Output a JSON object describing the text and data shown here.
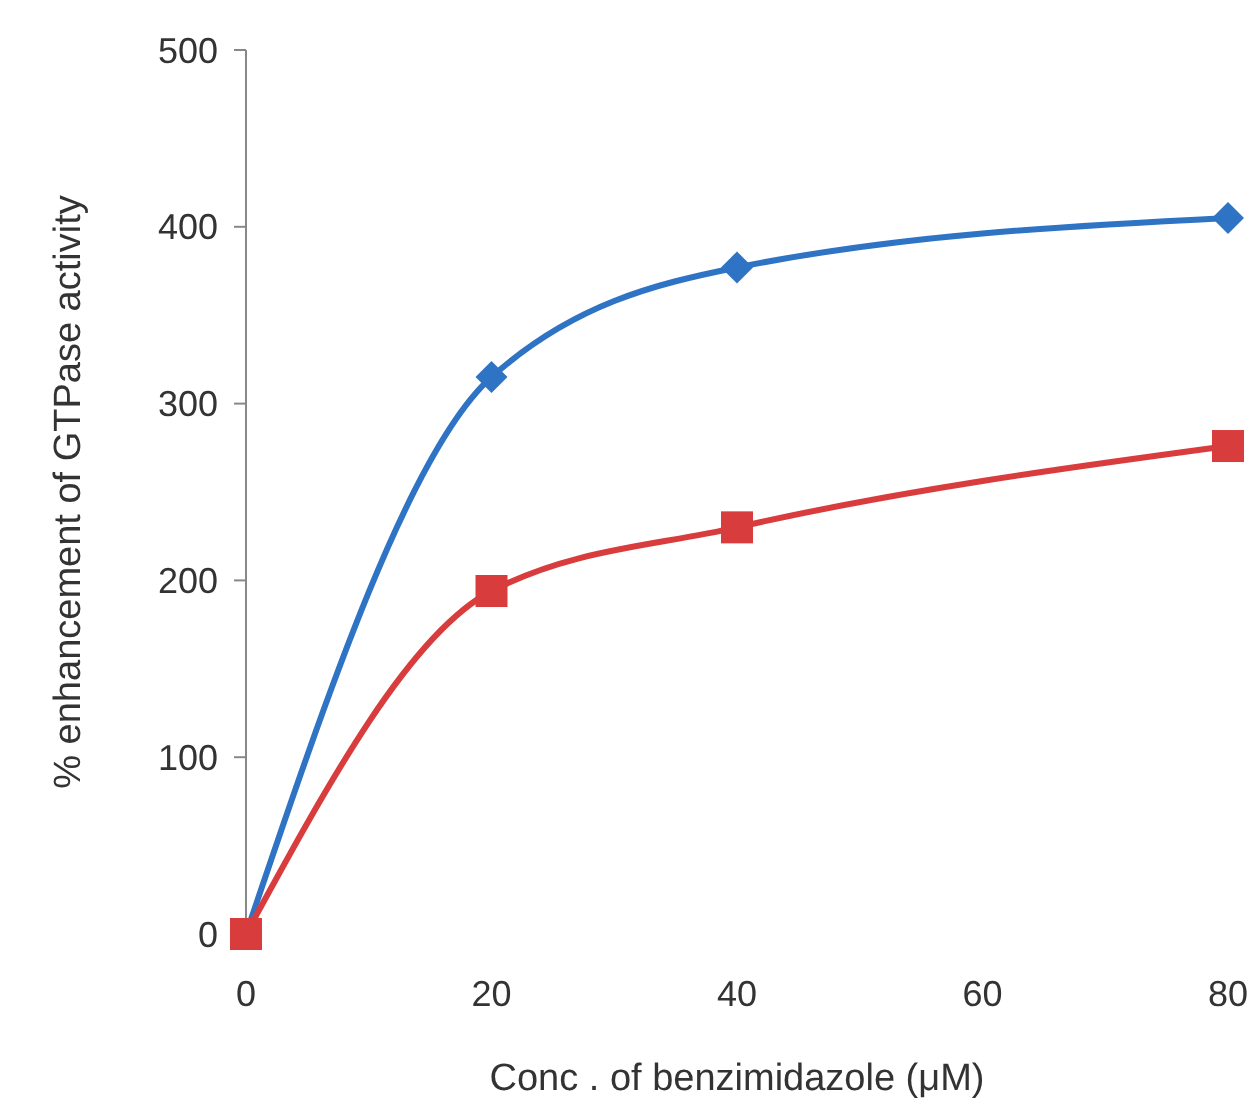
{
  "chart_data": {
    "type": "line",
    "xlabel": "Conc . of benzimidazole (μM)",
    "ylabel": "% enhancement of GTPase activity",
    "x": [
      0,
      20,
      40,
      80
    ],
    "series": [
      {
        "color": "#2f73c4",
        "values": [
          0,
          315,
          377,
          405
        ],
        "marker": "diamond"
      },
      {
        "color": "#d93c3c",
        "values": [
          0,
          194,
          230,
          276
        ],
        "marker": "square"
      }
    ],
    "xlim": [
      0,
      80
    ],
    "xticks": [
      0,
      20,
      40,
      60,
      80
    ],
    "ylim": [
      0,
      500
    ],
    "yticks": [
      0,
      100,
      200,
      300,
      400,
      500
    ],
    "line_style": "solid"
  }
}
